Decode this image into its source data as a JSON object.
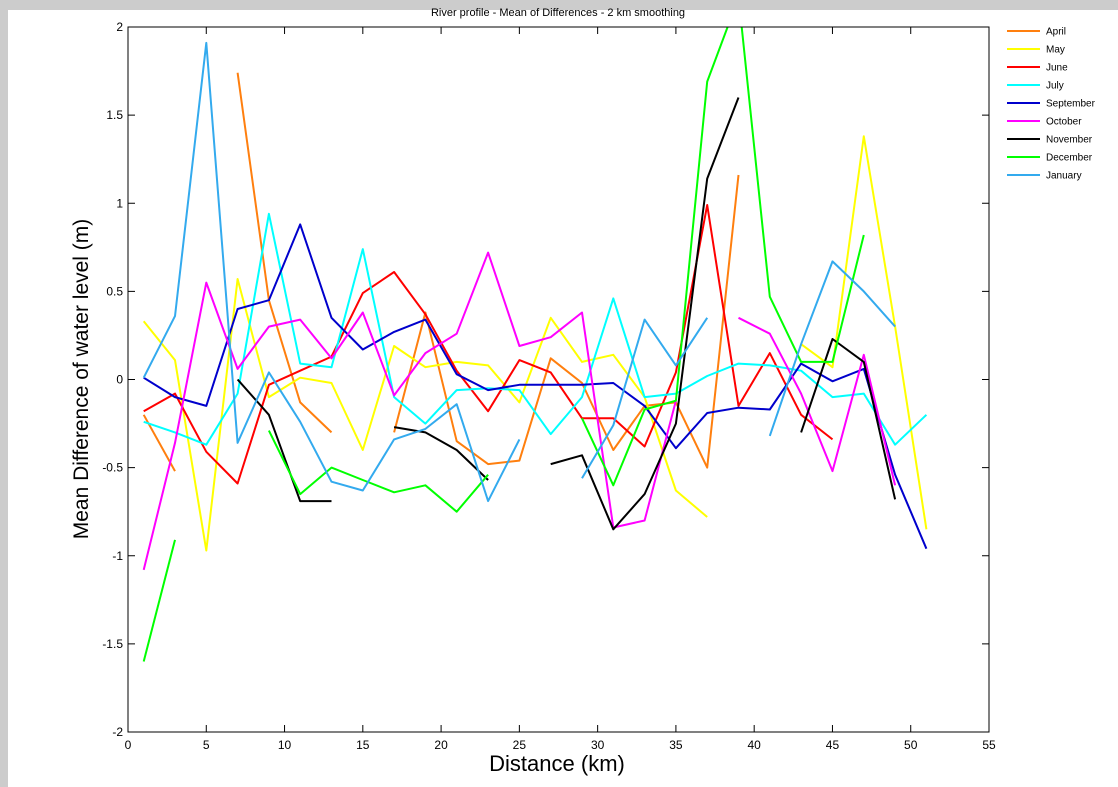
{
  "figure_background": "#cccccc",
  "plot_background": "#ffffff",
  "chart_data": {
    "type": "line",
    "title": "River profile - Mean of Differences - 2 km smoothing",
    "xlabel": "Distance (km)",
    "ylabel": "Mean Difference of water level (m)",
    "xlim": [
      0,
      55
    ],
    "ylim": [
      -2,
      2
    ],
    "xticks": [
      0,
      5,
      10,
      15,
      20,
      25,
      30,
      35,
      40,
      45,
      50,
      55
    ],
    "yticks": [
      -2,
      -1.5,
      -1,
      -0.5,
      0,
      0.5,
      1,
      1.5,
      2
    ],
    "xtick_labels": [
      "0",
      "5",
      "10",
      "15",
      "20",
      "25",
      "30",
      "35",
      "40",
      "45",
      "50",
      "55"
    ],
    "ytick_labels": [
      "-2",
      "-1.5",
      "-1",
      "-0.5",
      "0",
      "0.5",
      "1",
      "1.5",
      "2"
    ],
    "grid": false,
    "legend_position": "outside-top-right",
    "series": [
      {
        "name": "April",
        "color": "#ff7f0e",
        "segments": [
          [
            [
              1,
              -0.2
            ],
            [
              3,
              -0.52
            ]
          ],
          [
            [
              7,
              1.74
            ],
            [
              9,
              0.45
            ],
            [
              11,
              -0.13
            ],
            [
              13,
              -0.3
            ]
          ],
          [
            [
              17,
              -0.3
            ],
            [
              19,
              0.38
            ],
            [
              21,
              -0.35
            ],
            [
              23,
              -0.48
            ],
            [
              25,
              -0.46
            ],
            [
              27,
              0.12
            ],
            [
              29,
              -0.02
            ],
            [
              31,
              -0.4
            ],
            [
              33,
              -0.15
            ],
            [
              35,
              -0.13
            ],
            [
              37,
              -0.5
            ],
            [
              39,
              1.16
            ]
          ]
        ]
      },
      {
        "name": "May",
        "color": "#ffff00",
        "segments": [
          [
            [
              1,
              0.33
            ],
            [
              3,
              0.11
            ],
            [
              5,
              -0.97
            ],
            [
              7,
              0.57
            ],
            [
              9,
              -0.1
            ],
            [
              11,
              0.01
            ],
            [
              13,
              -0.02
            ],
            [
              15,
              -0.4
            ],
            [
              17,
              0.19
            ],
            [
              19,
              0.07
            ],
            [
              21,
              0.1
            ],
            [
              23,
              0.08
            ],
            [
              25,
              -0.13
            ],
            [
              27,
              0.35
            ],
            [
              29,
              0.1
            ],
            [
              31,
              0.14
            ],
            [
              33,
              -0.1
            ],
            [
              35,
              -0.63
            ],
            [
              37,
              -0.78
            ]
          ],
          [
            [
              43,
              0.2
            ],
            [
              45,
              0.07
            ],
            [
              47,
              1.38
            ],
            [
              49,
              0.3
            ],
            [
              51,
              -0.85
            ]
          ]
        ]
      },
      {
        "name": "June",
        "color": "#ff0000",
        "segments": [
          [
            [
              1,
              -0.18
            ],
            [
              3,
              -0.08
            ],
            [
              5,
              -0.41
            ],
            [
              7,
              -0.59
            ],
            [
              9,
              -0.03
            ],
            [
              11,
              0.05
            ],
            [
              13,
              0.13
            ],
            [
              15,
              0.49
            ],
            [
              17,
              0.61
            ],
            [
              19,
              0.37
            ],
            [
              21,
              0.05
            ],
            [
              23,
              -0.18
            ],
            [
              25,
              0.11
            ],
            [
              27,
              0.04
            ],
            [
              29,
              -0.22
            ],
            [
              31,
              -0.22
            ],
            [
              33,
              -0.38
            ],
            [
              35,
              0.04
            ],
            [
              37,
              0.99
            ],
            [
              39,
              -0.15
            ],
            [
              41,
              0.15
            ],
            [
              43,
              -0.2
            ],
            [
              45,
              -0.34
            ]
          ]
        ]
      },
      {
        "name": "July",
        "color": "#00ffff",
        "segments": [
          [
            [
              1,
              -0.24
            ],
            [
              3,
              -0.3
            ],
            [
              5,
              -0.37
            ],
            [
              7,
              -0.08
            ],
            [
              9,
              0.94
            ],
            [
              11,
              0.09
            ],
            [
              13,
              0.07
            ],
            [
              15,
              0.74
            ],
            [
              17,
              -0.1
            ],
            [
              19,
              -0.25
            ],
            [
              21,
              -0.06
            ],
            [
              23,
              -0.05
            ],
            [
              25,
              -0.06
            ],
            [
              27,
              -0.31
            ],
            [
              29,
              -0.1
            ],
            [
              31,
              0.46
            ],
            [
              33,
              -0.1
            ],
            [
              35,
              -0.08
            ],
            [
              37,
              0.02
            ],
            [
              39,
              0.09
            ],
            [
              41,
              0.08
            ],
            [
              43,
              0.05
            ],
            [
              45,
              -0.1
            ],
            [
              47,
              -0.08
            ],
            [
              49,
              -0.37
            ],
            [
              51,
              -0.2
            ]
          ]
        ]
      },
      {
        "name": "September",
        "color": "#0000cc",
        "segments": [
          [
            [
              1,
              0.01
            ],
            [
              3,
              -0.1
            ],
            [
              5,
              -0.15
            ],
            [
              7,
              0.4
            ],
            [
              9,
              0.45
            ],
            [
              11,
              0.88
            ],
            [
              13,
              0.35
            ],
            [
              15,
              0.17
            ],
            [
              17,
              0.27
            ],
            [
              19,
              0.34
            ],
            [
              21,
              0.03
            ],
            [
              23,
              -0.06
            ],
            [
              25,
              -0.03
            ],
            [
              27,
              -0.03
            ],
            [
              29,
              -0.03
            ],
            [
              31,
              -0.02
            ],
            [
              33,
              -0.15
            ],
            [
              35,
              -0.39
            ],
            [
              37,
              -0.19
            ],
            [
              39,
              -0.16
            ],
            [
              41,
              -0.17
            ],
            [
              43,
              0.09
            ],
            [
              45,
              -0.01
            ],
            [
              47,
              0.06
            ],
            [
              49,
              -0.54
            ],
            [
              51,
              -0.96
            ]
          ]
        ]
      },
      {
        "name": "October",
        "color": "#ff00ff",
        "segments": [
          [
            [
              1,
              -1.08
            ],
            [
              3,
              -0.36
            ],
            [
              5,
              0.55
            ],
            [
              7,
              0.06
            ],
            [
              9,
              0.3
            ],
            [
              11,
              0.34
            ],
            [
              13,
              0.12
            ],
            [
              15,
              0.38
            ],
            [
              17,
              -0.09
            ],
            [
              19,
              0.15
            ],
            [
              21,
              0.26
            ],
            [
              23,
              0.72
            ],
            [
              25,
              0.19
            ],
            [
              27,
              0.24
            ],
            [
              29,
              0.38
            ],
            [
              31,
              -0.84
            ],
            [
              33,
              -0.8
            ],
            [
              35,
              -0.12
            ]
          ],
          [
            [
              39,
              0.35
            ],
            [
              41,
              0.26
            ],
            [
              43,
              -0.08
            ],
            [
              45,
              -0.52
            ],
            [
              47,
              0.14
            ],
            [
              49,
              -0.6
            ]
          ]
        ]
      },
      {
        "name": "November",
        "color": "#000000",
        "segments": [
          [
            [
              7,
              0.0
            ],
            [
              9,
              -0.2
            ],
            [
              11,
              -0.69
            ],
            [
              13,
              -0.69
            ]
          ],
          [
            [
              17,
              -0.27
            ],
            [
              19,
              -0.3
            ],
            [
              21,
              -0.4
            ],
            [
              23,
              -0.57
            ]
          ],
          [
            [
              27,
              -0.48
            ],
            [
              29,
              -0.43
            ],
            [
              31,
              -0.85
            ],
            [
              33,
              -0.65
            ],
            [
              35,
              -0.25
            ],
            [
              37,
              1.14
            ],
            [
              39,
              1.6
            ]
          ],
          [
            [
              43,
              -0.3
            ],
            [
              45,
              0.23
            ],
            [
              47,
              0.1
            ],
            [
              49,
              -0.68
            ]
          ]
        ]
      },
      {
        "name": "December",
        "color": "#00ff00",
        "segments": [
          [
            [
              1,
              -1.6
            ],
            [
              3,
              -0.91
            ]
          ],
          [
            [
              9,
              -0.29
            ],
            [
              11,
              -0.65
            ],
            [
              13,
              -0.5
            ],
            [
              15,
              -0.57
            ],
            [
              17,
              -0.64
            ],
            [
              19,
              -0.6
            ],
            [
              21,
              -0.75
            ],
            [
              23,
              -0.54
            ]
          ],
          [
            [
              29,
              -0.22
            ],
            [
              31,
              -0.6
            ],
            [
              33,
              -0.17
            ],
            [
              35,
              -0.12
            ],
            [
              37,
              1.69
            ],
            [
              38.3,
              2.0
            ]
          ],
          [
            [
              39.2,
              2.0
            ],
            [
              41,
              0.47
            ],
            [
              43,
              0.1
            ],
            [
              45,
              0.1
            ],
            [
              47,
              0.82
            ]
          ]
        ]
      },
      {
        "name": "January",
        "color": "#33aaee",
        "segments": [
          [
            [
              1,
              0.01
            ],
            [
              3,
              0.36
            ],
            [
              5,
              1.91
            ],
            [
              7,
              -0.36
            ],
            [
              9,
              0.04
            ],
            [
              11,
              -0.24
            ],
            [
              13,
              -0.58
            ],
            [
              15,
              -0.63
            ],
            [
              17,
              -0.34
            ],
            [
              19,
              -0.28
            ],
            [
              21,
              -0.14
            ],
            [
              23,
              -0.69
            ],
            [
              25,
              -0.34
            ]
          ],
          [
            [
              29,
              -0.56
            ],
            [
              31,
              -0.26
            ],
            [
              33,
              0.34
            ],
            [
              35,
              0.08
            ],
            [
              37,
              0.35
            ]
          ],
          [
            [
              41,
              -0.32
            ],
            [
              43,
              0.2
            ],
            [
              45,
              0.67
            ],
            [
              47,
              0.5
            ],
            [
              49,
              0.3
            ]
          ]
        ]
      }
    ]
  }
}
